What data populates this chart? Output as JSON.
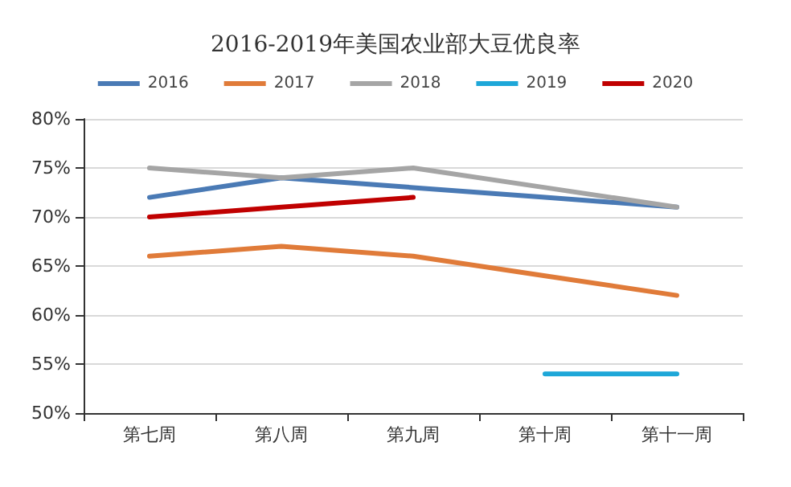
{
  "chart_data": {
    "type": "line",
    "title": "2016-2019年美国农业部大豆优良率",
    "categories": [
      "第七周",
      "第八周",
      "第九周",
      "第十周",
      "第十一周"
    ],
    "series": [
      {
        "name": "2016",
        "color": "#4a7ab5",
        "values": [
          72,
          74,
          73,
          72,
          71
        ]
      },
      {
        "name": "2017",
        "color": "#e07b39",
        "values": [
          66,
          67,
          66,
          64,
          62
        ]
      },
      {
        "name": "2018",
        "color": "#a5a5a5",
        "values": [
          75,
          74,
          75,
          73,
          71
        ]
      },
      {
        "name": "2019",
        "color": "#1ea7d8",
        "values": [
          null,
          null,
          null,
          54,
          54
        ]
      },
      {
        "name": "2020",
        "color": "#c00000",
        "values": [
          70,
          71,
          72,
          null,
          null
        ]
      }
    ],
    "ylim": [
      50,
      80
    ],
    "yticks": [
      {
        "value": 50,
        "label": "50%"
      },
      {
        "value": 55,
        "label": "55%"
      },
      {
        "value": 60,
        "label": "60%"
      },
      {
        "value": 65,
        "label": "65%"
      },
      {
        "value": 70,
        "label": "70%"
      },
      {
        "value": 75,
        "label": "75%"
      },
      {
        "value": 80,
        "label": "80%"
      }
    ],
    "grid": "y",
    "legend": "top",
    "marker": "none",
    "line_style": "solid"
  }
}
